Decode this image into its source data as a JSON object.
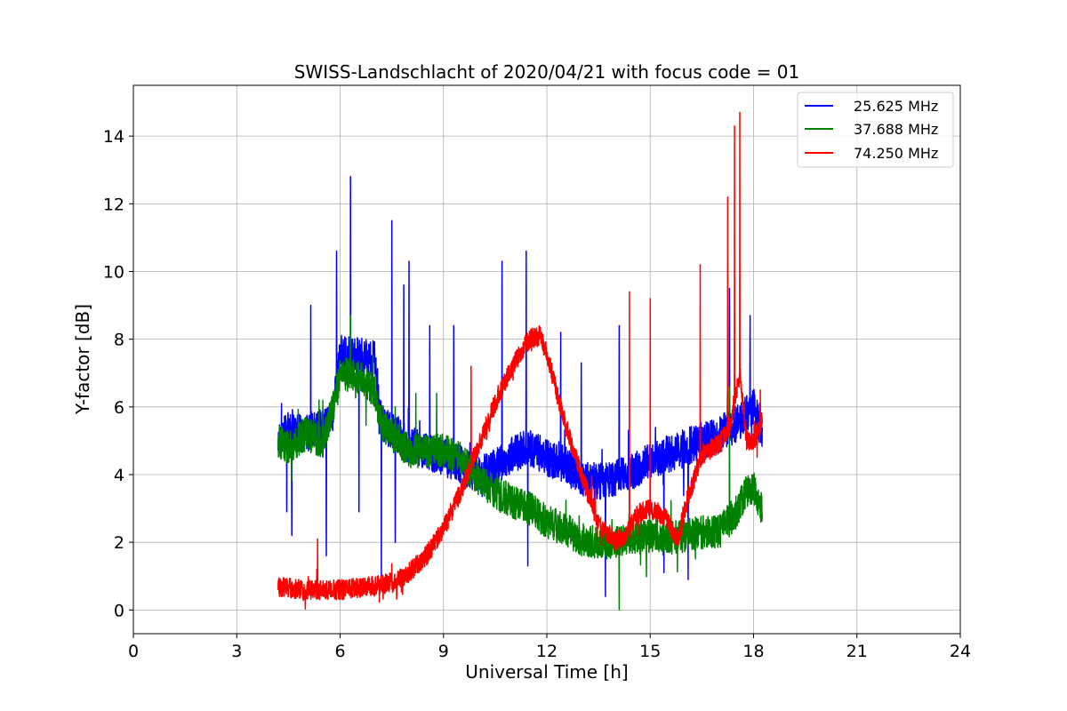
{
  "chart_data": {
    "type": "line",
    "title": "SWISS-Landschlacht of 2020/04/21 with focus code = 01",
    "xlabel": "Universal Time [h]",
    "ylabel": "Y-factor [dB]",
    "xlim": [
      0,
      24
    ],
    "ylim": [
      -0.7,
      15.5
    ],
    "xticks": [
      0,
      3,
      6,
      9,
      12,
      15,
      18,
      21,
      24
    ],
    "yticks": [
      0,
      2,
      4,
      6,
      8,
      10,
      12,
      14
    ],
    "grid": true,
    "legend_position": "top-right",
    "series": [
      {
        "name": "25.625 MHz",
        "color": "#0000ff",
        "points": [
          [
            4.2,
            5.0
          ],
          [
            4.5,
            5.3
          ],
          [
            5.0,
            5.2
          ],
          [
            5.5,
            5.4
          ],
          [
            5.8,
            5.8
          ],
          [
            6.0,
            7.6
          ],
          [
            6.5,
            7.5
          ],
          [
            7.0,
            7.4
          ],
          [
            7.2,
            5.5
          ],
          [
            8.0,
            4.9
          ],
          [
            9.0,
            4.5
          ],
          [
            9.5,
            4.3
          ],
          [
            10.0,
            4.0
          ],
          [
            10.5,
            4.2
          ],
          [
            11.0,
            4.6
          ],
          [
            11.5,
            4.8
          ],
          [
            12.0,
            4.5
          ],
          [
            12.5,
            4.3
          ],
          [
            13.0,
            3.9
          ],
          [
            13.5,
            3.8
          ],
          [
            14.0,
            3.9
          ],
          [
            14.5,
            4.1
          ],
          [
            15.0,
            4.4
          ],
          [
            15.5,
            4.6
          ],
          [
            16.0,
            4.8
          ],
          [
            16.5,
            5.0
          ],
          [
            17.0,
            5.2
          ],
          [
            17.5,
            5.5
          ],
          [
            18.0,
            6.0
          ],
          [
            18.25,
            5.2
          ]
        ],
        "spikes": [
          [
            4.3,
            6.1
          ],
          [
            4.45,
            2.9
          ],
          [
            4.6,
            2.2
          ],
          [
            5.15,
            9.0
          ],
          [
            5.6,
            1.6
          ],
          [
            5.9,
            10.6
          ],
          [
            6.3,
            12.8
          ],
          [
            6.55,
            2.9
          ],
          [
            7.2,
            1.0
          ],
          [
            7.5,
            11.5
          ],
          [
            7.6,
            2.0
          ],
          [
            7.85,
            9.6
          ],
          [
            8.0,
            10.3
          ],
          [
            8.6,
            8.4
          ],
          [
            9.3,
            8.4
          ],
          [
            10.7,
            10.3
          ],
          [
            11.4,
            10.6
          ],
          [
            11.45,
            1.3
          ],
          [
            12.4,
            8.2
          ],
          [
            13.0,
            7.3
          ],
          [
            13.7,
            0.4
          ],
          [
            14.1,
            8.4
          ],
          [
            15.4,
            1.1
          ],
          [
            16.1,
            0.9
          ],
          [
            17.3,
            9.5
          ],
          [
            17.9,
            8.7
          ]
        ],
        "noise": 0.55
      },
      {
        "name": "37.688 MHz",
        "color": "#008000",
        "points": [
          [
            4.2,
            5.0
          ],
          [
            4.5,
            4.8
          ],
          [
            5.0,
            5.2
          ],
          [
            5.5,
            5.0
          ],
          [
            5.8,
            6.0
          ],
          [
            6.0,
            7.0
          ],
          [
            6.5,
            6.9
          ],
          [
            7.0,
            6.5
          ],
          [
            7.2,
            5.5
          ],
          [
            8.0,
            4.7
          ],
          [
            9.0,
            4.7
          ],
          [
            9.5,
            4.5
          ],
          [
            10.0,
            3.8
          ],
          [
            10.5,
            3.5
          ],
          [
            11.0,
            3.2
          ],
          [
            11.5,
            3.0
          ],
          [
            12.0,
            2.6
          ],
          [
            12.5,
            2.4
          ],
          [
            13.0,
            2.1
          ],
          [
            13.5,
            2.0
          ],
          [
            14.0,
            2.0
          ],
          [
            14.5,
            2.1
          ],
          [
            15.0,
            2.2
          ],
          [
            15.5,
            2.1
          ],
          [
            16.0,
            2.2
          ],
          [
            16.5,
            2.3
          ],
          [
            17.0,
            2.3
          ],
          [
            17.5,
            2.9
          ],
          [
            17.8,
            3.5
          ],
          [
            18.0,
            3.6
          ],
          [
            18.25,
            3.0
          ]
        ],
        "spikes": [
          [
            5.5,
            6.2
          ],
          [
            6.3,
            8.7
          ],
          [
            7.6,
            6.0
          ],
          [
            8.2,
            6.4
          ],
          [
            8.8,
            6.4
          ],
          [
            14.1,
            0.0
          ],
          [
            17.3,
            6.6
          ]
        ],
        "noise": 0.5
      },
      {
        "name": "74.250 MHz",
        "color": "#ff0000",
        "points": [
          [
            4.2,
            0.7
          ],
          [
            5.0,
            0.6
          ],
          [
            6.0,
            0.6
          ],
          [
            7.0,
            0.7
          ],
          [
            7.5,
            0.8
          ],
          [
            8.0,
            1.1
          ],
          [
            8.5,
            1.6
          ],
          [
            9.0,
            2.4
          ],
          [
            9.5,
            3.5
          ],
          [
            10.0,
            4.8
          ],
          [
            10.5,
            6.1
          ],
          [
            11.0,
            7.2
          ],
          [
            11.5,
            8.0
          ],
          [
            11.8,
            8.1
          ],
          [
            12.0,
            7.6
          ],
          [
            12.5,
            5.6
          ],
          [
            13.0,
            4.0
          ],
          [
            13.5,
            2.6
          ],
          [
            14.0,
            2.0
          ],
          [
            14.3,
            2.2
          ],
          [
            14.6,
            2.8
          ],
          [
            15.0,
            3.0
          ],
          [
            15.5,
            2.7
          ],
          [
            15.8,
            2.0
          ],
          [
            16.0,
            3.0
          ],
          [
            16.5,
            4.6
          ],
          [
            17.0,
            4.9
          ],
          [
            17.3,
            5.4
          ],
          [
            17.6,
            7.0
          ],
          [
            17.8,
            5.0
          ],
          [
            18.0,
            5.0
          ],
          [
            18.25,
            5.6
          ]
        ],
        "spikes": [
          [
            5.35,
            2.1
          ],
          [
            9.8,
            7.2
          ],
          [
            14.4,
            9.4
          ],
          [
            15.0,
            9.2
          ],
          [
            16.45,
            10.2
          ],
          [
            17.25,
            12.2
          ],
          [
            17.45,
            14.3
          ],
          [
            17.6,
            14.7
          ],
          [
            18.2,
            6.5
          ]
        ],
        "noise": 0.3
      }
    ]
  }
}
